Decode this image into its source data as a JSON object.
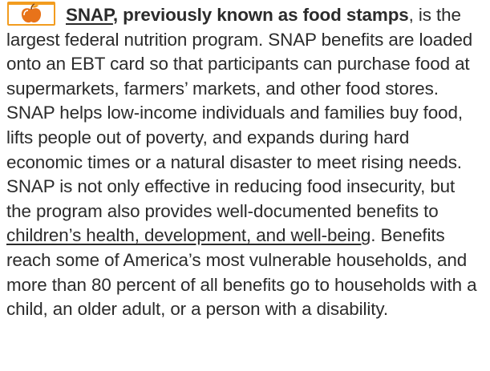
{
  "paragraph": {
    "link_lead": "SNAP",
    "bold_lead": ", previously known as food stamps",
    "text_1": ", is the largest federal nutrition program. SNAP benefits are loaded onto an EBT card so that participants can purchase food at supermarkets, farmers’ markets, and other food stores. SNAP helps low-income individuals and families buy food, lifts people out of poverty, and expands during hard economic times or a natural disaster to meet rising needs. SNAP is not only effective in reducing food insecurity, but the program also provides well-documented benefits to ",
    "link_2": "children’s health, development, and well-being",
    "text_2": ". Benefits reach some of America’s most vulnerable households, and more than 80 percent of all benefits go to households with a child, an older adult, or a person with a disability."
  }
}
